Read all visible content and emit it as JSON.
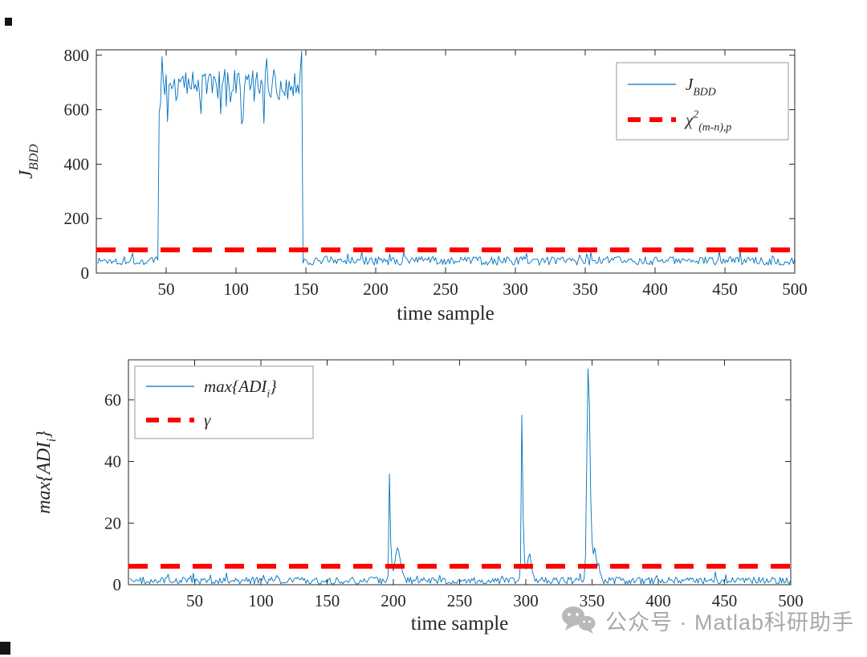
{
  "watermark": {
    "text": "公众号 · Matlab科研助手",
    "color": "#a9a9a9"
  },
  "chart_data": [
    {
      "id": "top",
      "type": "line",
      "xlabel": "time sample",
      "ylabel_parts": [
        {
          "text": "J",
          "kind": "italic"
        },
        {
          "text": "BDD",
          "kind": "sub"
        }
      ],
      "xlim": [
        0,
        500
      ],
      "ylim": [
        0,
        820
      ],
      "xticks": [
        50,
        100,
        150,
        200,
        250,
        300,
        350,
        400,
        450,
        500
      ],
      "yticks": [
        0,
        200,
        400,
        600,
        800
      ],
      "grid": false,
      "line_color": "#0072BD",
      "threshold": {
        "value": 85,
        "color": "#ff0000",
        "style": "dashed"
      },
      "series": {
        "name": "J_BDD",
        "seed": 1337,
        "baseline": {
          "mean": 45,
          "noise": 16
        },
        "events": [
          {
            "start": 45,
            "end": 147,
            "mean": 692,
            "noise": 58
          }
        ],
        "points_override": [
          [
            46,
            625
          ],
          [
            47,
            795
          ],
          [
            104,
            548
          ],
          [
            105,
            562
          ],
          [
            120,
            550
          ],
          [
            122,
            788
          ],
          [
            146,
            742
          ],
          [
            147,
            815
          ]
        ]
      },
      "legend": {
        "position": "top-right",
        "entries": [
          {
            "sample": "line",
            "label_parts": [
              {
                "text": "J",
                "kind": "italic"
              },
              {
                "text": "BDD",
                "kind": "sub"
              }
            ]
          },
          {
            "sample": "dash",
            "label_parts": [
              {
                "text": "χ",
                "kind": "italic"
              },
              {
                "text": "2",
                "kind": "sup"
              },
              {
                "text": "(m-n),p",
                "kind": "sub"
              }
            ]
          }
        ]
      }
    },
    {
      "id": "bottom",
      "type": "line",
      "xlabel": "time sample",
      "ylabel_parts": [
        {
          "text": "max{ADI",
          "kind": "italic"
        },
        {
          "text": "i",
          "kind": "sub"
        },
        {
          "text": "}",
          "kind": "italic"
        }
      ],
      "xlim": [
        0,
        500
      ],
      "ylim": [
        0,
        73
      ],
      "xticks": [
        50,
        100,
        150,
        200,
        250,
        300,
        350,
        400,
        450,
        500
      ],
      "yticks": [
        0,
        20,
        40,
        60
      ],
      "grid": false,
      "line_color": "#0072BD",
      "threshold": {
        "value": 6,
        "color": "#ff0000",
        "style": "dashed"
      },
      "series": {
        "name": "max{ADI_i}",
        "seed": 2024,
        "baseline": {
          "mean": 1.3,
          "noise": 1.2
        },
        "events": [],
        "points_override": [
          [
            195,
            1.5
          ],
          [
            196,
            3
          ],
          [
            197,
            36
          ],
          [
            198,
            14
          ],
          [
            199,
            6
          ],
          [
            200,
            4.5
          ],
          [
            201,
            7
          ],
          [
            202,
            10
          ],
          [
            203,
            12
          ],
          [
            204,
            11
          ],
          [
            205,
            8.5
          ],
          [
            206,
            6
          ],
          [
            207,
            4
          ],
          [
            208,
            3
          ],
          [
            209,
            2
          ],
          [
            295,
            2
          ],
          [
            296,
            7
          ],
          [
            297,
            55
          ],
          [
            298,
            22
          ],
          [
            299,
            8
          ],
          [
            300,
            5
          ],
          [
            301,
            6
          ],
          [
            302,
            9
          ],
          [
            303,
            10
          ],
          [
            304,
            7
          ],
          [
            305,
            4
          ],
          [
            306,
            3
          ],
          [
            344,
            2
          ],
          [
            345,
            9
          ],
          [
            346,
            40
          ],
          [
            347,
            70
          ],
          [
            348,
            58
          ],
          [
            349,
            28
          ],
          [
            350,
            14
          ],
          [
            351,
            10
          ],
          [
            352,
            12
          ],
          [
            353,
            9
          ],
          [
            354,
            6
          ],
          [
            355,
            7
          ],
          [
            356,
            4
          ],
          [
            357,
            3
          ]
        ]
      },
      "legend": {
        "position": "top-left",
        "entries": [
          {
            "sample": "line",
            "label_parts": [
              {
                "text": "max{ADI",
                "kind": "italic"
              },
              {
                "text": "i",
                "kind": "sub"
              },
              {
                "text": "}",
                "kind": "italic"
              }
            ]
          },
          {
            "sample": "dash",
            "label_parts": [
              {
                "text": "γ",
                "kind": "italic"
              }
            ]
          }
        ]
      }
    }
  ]
}
